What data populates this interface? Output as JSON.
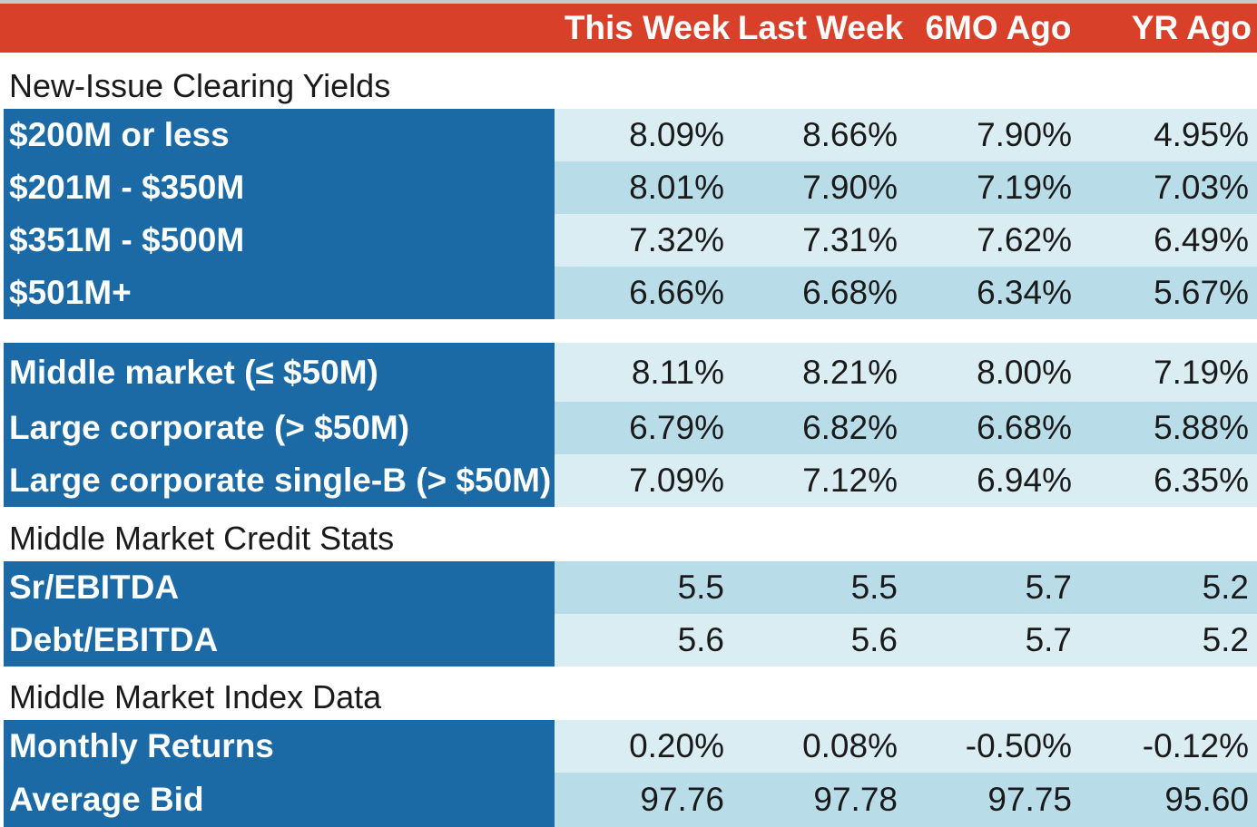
{
  "table": {
    "columns": [
      "This Week",
      "Last Week",
      "6MO Ago",
      "YR Ago"
    ],
    "sections": [
      {
        "title": "New-Issue Clearing Yields",
        "rows": [
          {
            "label": "$200M or less",
            "values": [
              "8.09%",
              "8.66%",
              "7.90%",
              "4.95%"
            ]
          },
          {
            "label": "$201M - $350M",
            "values": [
              "8.01%",
              "7.90%",
              "7.19%",
              "7.03%"
            ]
          },
          {
            "label": "$351M - $500M",
            "values": [
              "7.32%",
              "7.31%",
              "7.62%",
              "6.49%"
            ]
          },
          {
            "label": "$501M+",
            "values": [
              "6.66%",
              "6.68%",
              "6.34%",
              "5.67%"
            ]
          }
        ]
      },
      {
        "title": "",
        "rows": [
          {
            "label": "Middle market (≤ $50M)",
            "values": [
              "8.11%",
              "8.21%",
              "8.00%",
              "7.19%"
            ]
          },
          {
            "label": "Large corporate (> $50M)",
            "values": [
              "6.79%",
              "6.82%",
              "6.68%",
              "5.88%"
            ]
          },
          {
            "label": "Large corporate single-B (> $50M)",
            "values": [
              "7.09%",
              "7.12%",
              "6.94%",
              "6.35%"
            ]
          }
        ]
      },
      {
        "title": "Middle Market Credit Stats",
        "rows": [
          {
            "label": "Sr/EBITDA",
            "values": [
              "5.5",
              "5.5",
              "5.7",
              "5.2"
            ]
          },
          {
            "label": "Debt/EBITDA",
            "values": [
              "5.6",
              "5.6",
              "5.7",
              "5.2"
            ]
          }
        ]
      },
      {
        "title": "Middle Market Index Data",
        "rows": [
          {
            "label": "Monthly Returns",
            "values": [
              "0.20%",
              "0.08%",
              "-0.50%",
              "-0.12%"
            ]
          },
          {
            "label": "Average Bid",
            "values": [
              "97.76",
              "97.78",
              "97.75",
              "95.60"
            ]
          }
        ]
      }
    ]
  },
  "chart_data": {
    "type": "table",
    "columns": [
      "This Week",
      "Last Week",
      "6MO Ago",
      "YR Ago"
    ],
    "rows": [
      {
        "section": "New-Issue Clearing Yields",
        "label": "$200M or less",
        "values": [
          "8.09%",
          "8.66%",
          "7.90%",
          "4.95%"
        ]
      },
      {
        "section": "New-Issue Clearing Yields",
        "label": "$201M - $350M",
        "values": [
          "8.01%",
          "7.90%",
          "7.19%",
          "7.03%"
        ]
      },
      {
        "section": "New-Issue Clearing Yields",
        "label": "$351M - $500M",
        "values": [
          "7.32%",
          "7.31%",
          "7.62%",
          "6.49%"
        ]
      },
      {
        "section": "New-Issue Clearing Yields",
        "label": "$501M+",
        "values": [
          "6.66%",
          "6.68%",
          "6.34%",
          "5.67%"
        ]
      },
      {
        "section": "",
        "label": "Middle market (≤ $50M)",
        "values": [
          "8.11%",
          "8.21%",
          "8.00%",
          "7.19%"
        ]
      },
      {
        "section": "",
        "label": "Large corporate (> $50M)",
        "values": [
          "6.79%",
          "6.82%",
          "6.68%",
          "5.88%"
        ]
      },
      {
        "section": "",
        "label": "Large corporate single-B (> $50M)",
        "values": [
          "7.09%",
          "7.12%",
          "6.94%",
          "6.35%"
        ]
      },
      {
        "section": "Middle Market Credit Stats",
        "label": "Sr/EBITDA",
        "values": [
          "5.5",
          "5.5",
          "5.7",
          "5.2"
        ]
      },
      {
        "section": "Middle Market Credit Stats",
        "label": "Debt/EBITDA",
        "values": [
          "5.6",
          "5.6",
          "5.7",
          "5.2"
        ]
      },
      {
        "section": "Middle Market Index Data",
        "label": "Monthly Returns",
        "values": [
          "0.20%",
          "0.08%",
          "-0.50%",
          "-0.12%"
        ]
      },
      {
        "section": "Middle Market Index Data",
        "label": "Average Bid",
        "values": [
          "97.76",
          "97.78",
          "97.75",
          "95.60"
        ]
      }
    ]
  },
  "colors": {
    "header_bg": "#d8402a",
    "label_bg": "#1b6aa5",
    "row_light": "#daedf3",
    "row_dark": "#b9dde8"
  }
}
